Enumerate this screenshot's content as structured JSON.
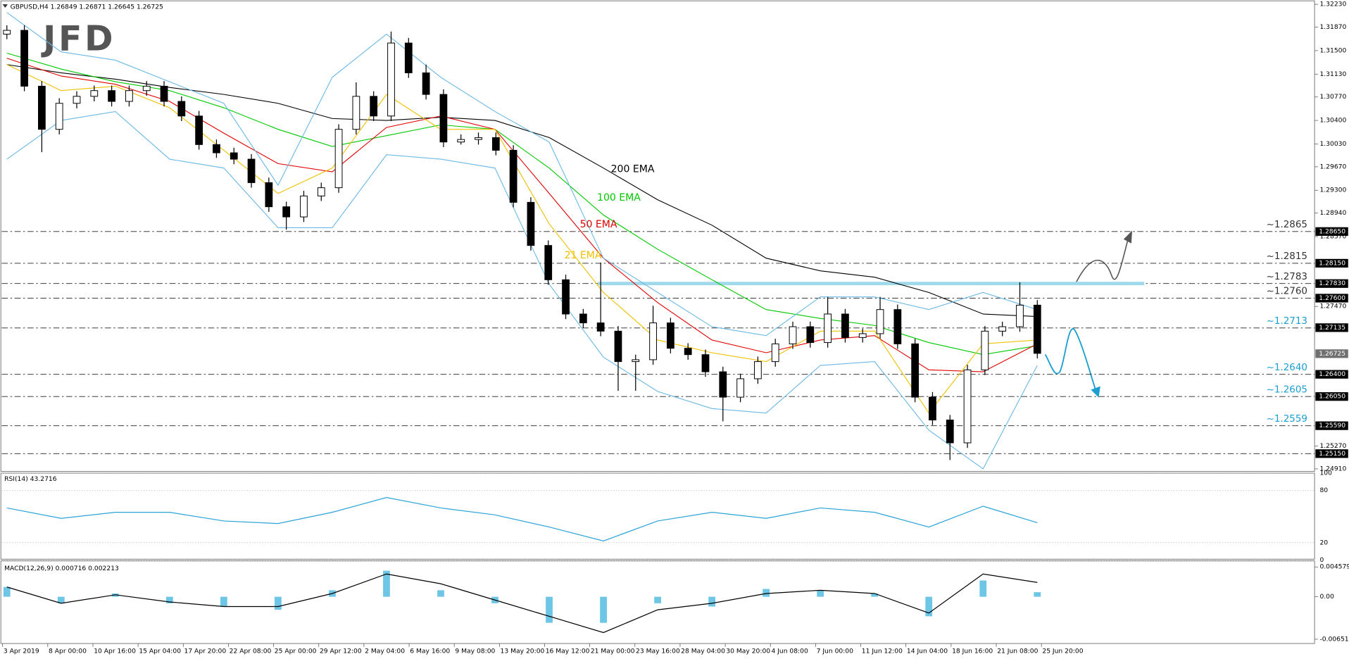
{
  "logo": "JFD",
  "chart_data": [
    {
      "type": "candlestick",
      "title": "GBPUSD,H4 1.26849 1.26871 1.26645 1.26725",
      "color_up": "#ffffff",
      "color_down": "#000000",
      "open": [
        1.3176,
        1.3182,
        1.3094,
        1.3026,
        1.3067,
        1.3078,
        1.3087,
        1.307,
        1.3087,
        1.3094,
        1.307,
        1.3047,
        1.3002,
        1.2989,
        1.2979,
        1.2942,
        1.2904,
        1.2888,
        1.2921,
        1.2934,
        1.3026,
        1.3078,
        1.3047,
        1.3162,
        1.3115,
        1.3081,
        1.3006,
        1.301,
        1.3013,
        1.2993,
        1.2911,
        1.2843,
        1.2789,
        1.2735,
        1.2721,
        1.2708,
        1.266,
        1.2663,
        1.2721,
        1.2681,
        1.2671,
        1.2644,
        1.2604,
        1.2633,
        1.266,
        1.2688,
        1.2715,
        1.269,
        1.2735,
        1.2698,
        1.2704,
        1.2742,
        1.2688,
        1.2604,
        1.2568,
        1.2532,
        1.2647,
        1.2708,
        1.2715,
        1.2749
      ],
      "high": [
        1.319,
        1.319,
        1.3102,
        1.3075,
        1.3086,
        1.3095,
        1.3095,
        1.3095,
        1.3102,
        1.3102,
        1.3078,
        1.3055,
        1.301,
        1.2997,
        1.2987,
        1.295,
        1.2912,
        1.2929,
        1.2942,
        1.3034,
        1.31,
        1.3086,
        1.318,
        1.317,
        1.3128,
        1.3089,
        1.3018,
        1.3021,
        1.3021,
        1.3001,
        1.2919,
        1.2851,
        1.2797,
        1.2743,
        1.2816,
        1.2716,
        1.2671,
        1.2748,
        1.2729,
        1.2689,
        1.2679,
        1.2652,
        1.2641,
        1.2668,
        1.2696,
        1.2723,
        1.2723,
        1.2762,
        1.2743,
        1.2712,
        1.2762,
        1.275,
        1.2696,
        1.2612,
        1.2576,
        1.2655,
        1.2716,
        1.2723,
        1.2785,
        1.2757
      ],
      "low": [
        1.3168,
        1.3086,
        1.299,
        1.3018,
        1.3059,
        1.307,
        1.3062,
        1.3062,
        1.3079,
        1.3062,
        1.3039,
        1.2994,
        1.2981,
        1.2971,
        1.2934,
        1.2896,
        1.2868,
        1.288,
        1.2913,
        1.2926,
        1.3018,
        1.3039,
        1.3039,
        1.3107,
        1.3073,
        1.2998,
        1.3002,
        1.3002,
        1.2985,
        1.2903,
        1.2835,
        1.2781,
        1.2727,
        1.2713,
        1.27,
        1.2614,
        1.2614,
        1.2655,
        1.2673,
        1.2663,
        1.2636,
        1.2566,
        1.2596,
        1.2625,
        1.2652,
        1.268,
        1.2682,
        1.2682,
        1.269,
        1.269,
        1.2696,
        1.268,
        1.2596,
        1.256,
        1.2505,
        1.2524,
        1.2639,
        1.27,
        1.2707,
        1.2665
      ],
      "close": [
        1.3182,
        1.3094,
        1.3026,
        1.3067,
        1.3078,
        1.3087,
        1.307,
        1.3087,
        1.3094,
        1.307,
        1.3047,
        1.3002,
        1.2989,
        1.2979,
        1.2942,
        1.2904,
        1.2888,
        1.2921,
        1.2934,
        1.3026,
        1.3078,
        1.3047,
        1.3162,
        1.3115,
        1.3081,
        1.3006,
        1.301,
        1.3013,
        1.2993,
        1.2911,
        1.2843,
        1.2789,
        1.2735,
        1.2721,
        1.2708,
        1.266,
        1.2663,
        1.2721,
        1.2681,
        1.2671,
        1.2644,
        1.2604,
        1.2633,
        1.266,
        1.2688,
        1.2715,
        1.269,
        1.2735,
        1.2698,
        1.2704,
        1.2742,
        1.2688,
        1.2604,
        1.2568,
        1.2532,
        1.2647,
        1.2708,
        1.2715,
        1.2749,
        1.2673
      ],
      "series": [
        {
          "name": "200 EMA",
          "color": "#000000",
          "values": [
            1.3128,
            1.3115,
            1.3105,
            1.3092,
            1.3081,
            1.3067,
            1.3043,
            1.304,
            1.3045,
            1.304,
            1.3013,
            1.2965,
            1.2915,
            1.2875,
            1.2823,
            1.2803,
            1.2793,
            1.2769,
            1.2735,
            1.2731
          ]
        },
        {
          "name": "100 EMA",
          "color": "#00c800",
          "values": [
            1.3146,
            1.3121,
            1.3101,
            1.3087,
            1.306,
            1.3026,
            1.2999,
            1.3016,
            1.3033,
            1.3026,
            1.2965,
            1.2891,
            1.2837,
            1.2789,
            1.2742,
            1.2728,
            1.2717,
            1.269,
            1.2671,
            1.2685
          ]
        },
        {
          "name": "50 EMA",
          "color": "#e00000",
          "values": [
            1.3138,
            1.311,
            1.3097,
            1.307,
            1.302,
            1.2972,
            1.2959,
            1.3029,
            1.3047,
            1.3026,
            1.2925,
            1.2823,
            1.2753,
            1.2694,
            1.2674,
            1.2694,
            1.2701,
            1.2647,
            1.2644,
            1.2688
          ]
        },
        {
          "name": "21 EMA",
          "color": "#f0c000",
          "values": [
            1.3128,
            1.3087,
            1.3094,
            1.306,
            1.2993,
            1.2925,
            1.2965,
            1.3081,
            1.3026,
            1.3026,
            1.2877,
            1.2769,
            1.2694,
            1.2674,
            1.266,
            1.2708,
            1.2708,
            1.2579,
            1.2688,
            1.2694
          ]
        },
        {
          "color": "#6ab8e4",
          "values": [
            1.321,
            1.3148,
            1.3135,
            1.3101,
            1.3067,
            1.2938,
            1.3108,
            1.3176,
            1.3108,
            1.3054,
            1.3006,
            1.2823,
            1.2769,
            1.2715,
            1.2701,
            1.2762,
            1.2762,
            1.2742,
            1.2769,
            1.2742
          ]
        },
        {
          "color": "#6ab8e4",
          "values": [
            1.2979,
            1.304,
            1.3054,
            1.2979,
            1.2965,
            1.2871,
            1.2871,
            1.2986,
            1.2979,
            1.2965,
            1.2782,
            1.2667,
            1.2613,
            1.2586,
            1.2579,
            1.2654,
            1.266,
            1.2552,
            1.2491,
            1.2654
          ]
        }
      ],
      "ylim": [
        1.2491,
        1.3223
      ],
      "yticks": [
        {
          "value": 1.3223,
          "label": "1.32230"
        },
        {
          "value": 1.3187,
          "label": "1.31870"
        },
        {
          "value": 1.315,
          "label": "1.31500"
        },
        {
          "value": 1.3113,
          "label": "1.31130"
        },
        {
          "value": 1.3077,
          "label": "1.30770"
        },
        {
          "value": 1.304,
          "label": "1.30400"
        },
        {
          "value": 1.3003,
          "label": "1.30030"
        },
        {
          "value": 1.2967,
          "label": "1.29670"
        },
        {
          "value": 1.293,
          "label": "1.29300"
        },
        {
          "value": 1.2894,
          "label": "1.28940"
        },
        {
          "value": 1.2857,
          "label": "1.28570"
        },
        {
          "value": 1.2747,
          "label": "1.27470"
        },
        {
          "value": 1.2527,
          "label": "1.25270"
        },
        {
          "value": 1.2491,
          "label": "1.24910"
        }
      ],
      "levels": [
        {
          "value": 1.2865,
          "label": "~1.2865",
          "color": "#333333"
        },
        {
          "value": 1.2815,
          "label": "~1.2815",
          "color": "#333333"
        },
        {
          "value": 1.2783,
          "label": "~1.2783",
          "color": "#333333",
          "highlight": true
        },
        {
          "value": 1.276,
          "label": "~1.2760",
          "color": "#333333"
        },
        {
          "value": 1.2713,
          "label": "~1.2713",
          "color": "#1a9fd0"
        },
        {
          "value": 1.264,
          "label": "~1.2640",
          "color": "#1a9fd0"
        },
        {
          "value": 1.2605,
          "label": "~1.2605",
          "color": "#1a9fd0"
        },
        {
          "value": 1.2559,
          "label": "~1.2559",
          "color": "#1a9fd0"
        },
        {
          "value": 1.2515,
          "color": "#333333"
        }
      ],
      "price_tags": [
        {
          "value": 1.2865,
          "label": "1.28650"
        },
        {
          "value": 1.2815,
          "label": "1.28150"
        },
        {
          "value": 1.2783,
          "label": "1.27830"
        },
        {
          "value": 1.276,
          "label": "1.27600"
        },
        {
          "value": 1.27135,
          "label": "1.27135"
        },
        {
          "value": 1.26725,
          "label": "1.26725",
          "current": true
        },
        {
          "value": 1.264,
          "label": "1.26400"
        },
        {
          "value": 1.2605,
          "label": "1.26050"
        },
        {
          "value": 1.2559,
          "label": "1.25590"
        },
        {
          "value": 1.2515,
          "label": "1.25150"
        }
      ]
    },
    {
      "type": "line",
      "title": "RSI(14) 43.2716",
      "series": [
        {
          "color": "#2ba3d8",
          "values": [
            60,
            48,
            55,
            55,
            45,
            42,
            55,
            72,
            60,
            52,
            38,
            22,
            45,
            55,
            48,
            60,
            55,
            38,
            62,
            43
          ]
        }
      ],
      "ylim": [
        0,
        100
      ],
      "yticks": [
        0,
        20,
        80,
        100
      ]
    },
    {
      "type": "macd",
      "title": "MACD(12,26,9) 0.000716 0.002213",
      "series": [
        {
          "color": "#6ec6e6",
          "values": [
            0.0015,
            -0.001,
            0.0005,
            -0.001,
            -0.0015,
            -0.002,
            0.001,
            0.004,
            0.001,
            -0.001,
            -0.004,
            -0.004,
            -0.001,
            -0.0015,
            0.0012,
            0.001,
            0.0005,
            -0.003,
            0.0025,
            0.0007
          ]
        },
        {
          "color": "#000000",
          "values": [
            0.0015,
            -0.001,
            0.0003,
            -0.0008,
            -0.0015,
            -0.0015,
            0.0005,
            0.0035,
            0.002,
            -0.0005,
            -0.003,
            -0.0055,
            -0.002,
            -0.001,
            0.0005,
            0.001,
            0.0005,
            -0.0025,
            0.0035,
            0.0022
          ]
        }
      ],
      "ylim": [
        -0.006519,
        0.004579
      ],
      "yticks": [
        -0.006519,
        {
          "value": 0,
          "label": "0.00"
        },
        0.004579
      ],
      "x_labels": [
        "3 Apr 2019",
        "8 Apr 00:00",
        "10 Apr 16:00",
        "15 Apr 04:00",
        "17 Apr 20:00",
        "22 Apr 08:00",
        "25 Apr 00:00",
        "29 Apr 12:00",
        "2 May 04:00",
        "6 May 16:00",
        "9 May 08:00",
        "13 May 20:00",
        "16 May 12:00",
        "21 May 00:00",
        "23 May 16:00",
        "28 May 04:00",
        "30 May 20:00",
        "4 Jun 08:00",
        "7 Jun 00:00",
        "11 Jun 12:00",
        "14 Jun 04:00",
        "18 Jun 16:00",
        "21 Jun 08:00",
        "25 Jun 20:00"
      ]
    }
  ]
}
